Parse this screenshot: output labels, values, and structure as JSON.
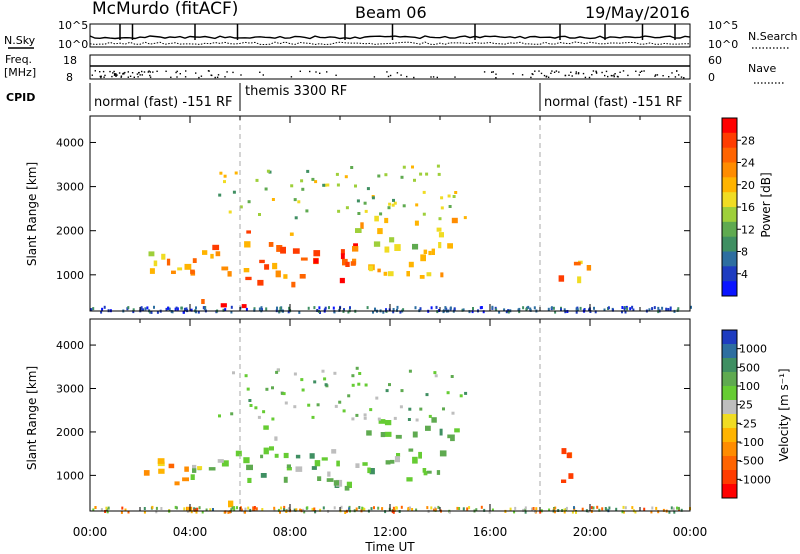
{
  "header": {
    "site": "McMurdo (fitACF)",
    "beam": "Beam 06",
    "date": "19/May/2016"
  },
  "noise_panel": {
    "left_label": "N.Sky",
    "right_label": "N.Search",
    "ticks": [
      "10^5",
      "10^0"
    ]
  },
  "freq_panel": {
    "left_label_line1": "Freq.",
    "left_label_line2": "[MHz]",
    "left_ticks": [
      "18",
      "8"
    ],
    "right_label": "Nave",
    "right_ticks": [
      "60",
      "0"
    ]
  },
  "cpid": {
    "label": "CPID",
    "segments": [
      {
        "text": "normal (fast) -151 RF",
        "start_hour": 0
      },
      {
        "text": "themis 3300 RF",
        "start_hour": 6
      },
      {
        "text": "normal (fast) -151 RF",
        "start_hour": 18
      }
    ]
  },
  "chart_data": [
    {
      "type": "heatmap",
      "parameter": "Power",
      "ylabel": "Slant Range [km]",
      "xlabel": "Time UT",
      "xlim": [
        0,
        24
      ],
      "ylim": [
        180,
        4600
      ],
      "xticks": [
        "00:00",
        "04:00",
        "08:00",
        "12:00",
        "16:00",
        "20:00",
        "00:00"
      ],
      "yticks": [
        "1000",
        "2000",
        "3000",
        "4000"
      ],
      "colorbar": {
        "label": "Power [dB]",
        "tick_labels": [
          "4",
          "8",
          "12",
          "16",
          "20",
          "24",
          "28"
        ],
        "range": [
          0,
          32
        ],
        "colors": [
          "#0a14ff",
          "#1e3cc0",
          "#2d6ea0",
          "#3f8f62",
          "#5faa50",
          "#9ecf3a",
          "#f0dc23",
          "#ffb400",
          "#ff8c00",
          "#ff6400",
          "#ff3c00",
          "#ff0000"
        ]
      },
      "data_gap_hours": [
        6,
        18
      ],
      "echo_regions": [
        {
          "t0": 1.9,
          "t1": 3.0,
          "r0": 900,
          "r1": 1500,
          "level": 0.55
        },
        {
          "t0": 3.0,
          "t1": 4.0,
          "r0": 800,
          "r1": 1450,
          "level": 0.6
        },
        {
          "t0": 4.0,
          "t1": 5.9,
          "r0": 850,
          "r1": 1700,
          "level": 0.7
        },
        {
          "t0": 6.0,
          "t1": 8.0,
          "r0": 800,
          "r1": 2100,
          "level": 0.75
        },
        {
          "t0": 8.0,
          "t1": 10.6,
          "r0": 600,
          "r1": 1700,
          "level": 0.85
        },
        {
          "t0": 10.6,
          "t1": 12.4,
          "r0": 900,
          "r1": 2300,
          "level": 0.6
        },
        {
          "t0": 12.6,
          "t1": 14.6,
          "r0": 900,
          "r1": 2300,
          "level": 0.55
        },
        {
          "t0": 3.8,
          "t1": 6.6,
          "r0": 200,
          "r1": 420,
          "level": 0.9
        },
        {
          "t0": 18.6,
          "t1": 19.9,
          "r0": 850,
          "r1": 1600,
          "level": 0.7
        }
      ]
    },
    {
      "type": "heatmap",
      "parameter": "Velocity",
      "ylabel": "Slant Range [km]",
      "xlabel": "Time UT",
      "xlim": [
        0,
        24
      ],
      "ylim": [
        180,
        4600
      ],
      "xticks": [
        "00:00",
        "04:00",
        "08:00",
        "12:00",
        "16:00",
        "20:00",
        "00:00"
      ],
      "yticks": [
        "1000",
        "2000",
        "3000",
        "4000"
      ],
      "colorbar": {
        "label": "Velocity [m s⁻¹]",
        "tick_labels": [
          "1000",
          "500",
          "100",
          "25",
          "-25",
          "-100",
          "-500",
          "-1000"
        ],
        "range": [
          -1000,
          1000
        ],
        "colors": [
          "#1e3cc0",
          "#2d6ea0",
          "#3f8f62",
          "#5faa50",
          "#66cc33",
          "#bebebe",
          "#f0dc23",
          "#ffb400",
          "#ff8c00",
          "#ff6400",
          "#ff3c00",
          "#ff0000"
        ]
      },
      "data_gap_hours": [
        6,
        18
      ],
      "echo_regions": [
        {
          "t0": 1.9,
          "t1": 3.0,
          "r0": 900,
          "r1": 1500,
          "level": -0.3
        },
        {
          "t0": 3.0,
          "t1": 4.0,
          "r0": 800,
          "r1": 1450,
          "level": -0.4
        },
        {
          "t0": 4.0,
          "t1": 5.9,
          "r0": 850,
          "r1": 1700,
          "level": 0.2
        },
        {
          "t0": 6.0,
          "t1": 8.0,
          "r0": 800,
          "r1": 2100,
          "level": 0.3
        },
        {
          "t0": 8.0,
          "t1": 10.6,
          "r0": 600,
          "r1": 1700,
          "level": 0.35
        },
        {
          "t0": 10.6,
          "t1": 12.4,
          "r0": 900,
          "r1": 2300,
          "level": 0.3
        },
        {
          "t0": 12.6,
          "t1": 14.6,
          "r0": 900,
          "r1": 2300,
          "level": 0.3
        },
        {
          "t0": 3.8,
          "t1": 6.6,
          "r0": 200,
          "r1": 420,
          "level": -0.5
        },
        {
          "t0": 18.6,
          "t1": 19.9,
          "r0": 850,
          "r1": 1600,
          "level": -0.6
        }
      ]
    }
  ]
}
